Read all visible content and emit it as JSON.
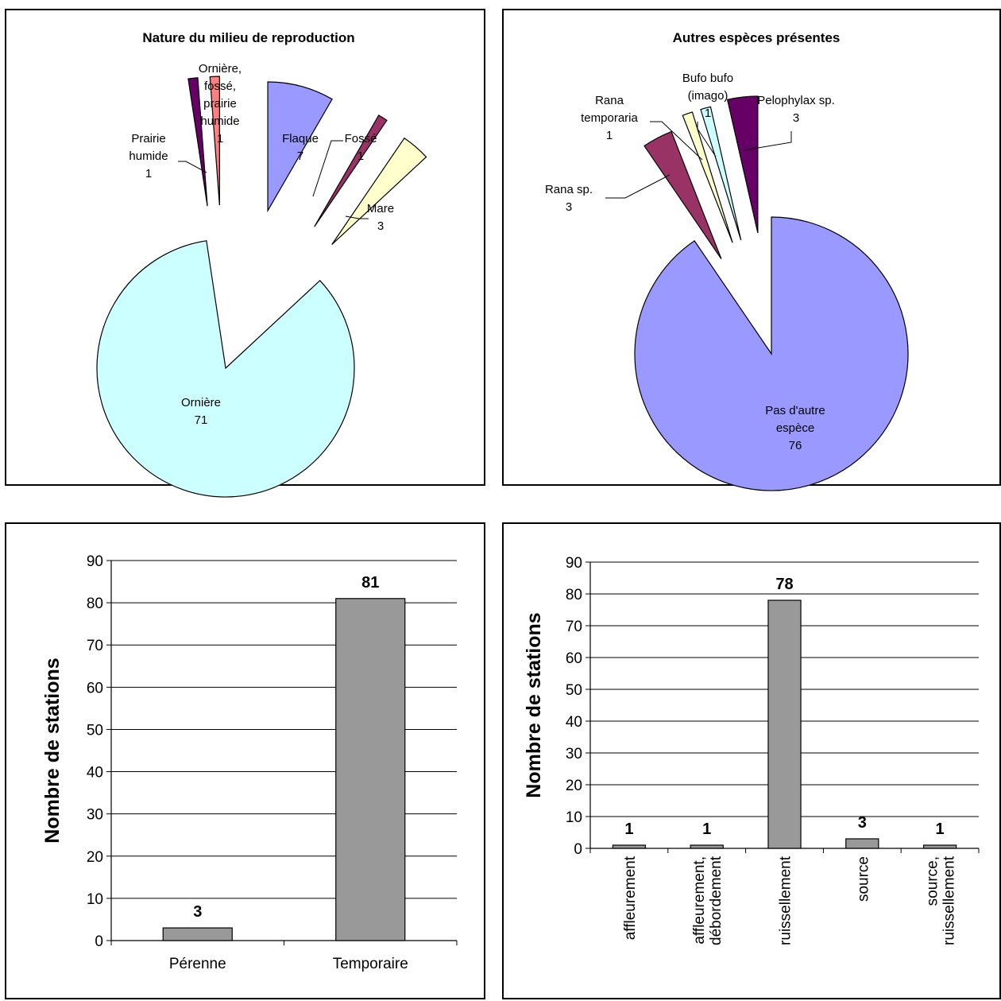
{
  "chart_data": [
    {
      "type": "pie",
      "title": "Nature du milieu de reproduction",
      "slices": [
        {
          "label": "Flaque",
          "value": 7,
          "color": "#9999ff"
        },
        {
          "label": "Fossé",
          "value": 1,
          "color": "#993366"
        },
        {
          "label": "Mare",
          "value": 3,
          "color": "#ffffcc"
        },
        {
          "label": "Ornière",
          "value": 71,
          "color": "#ccffff"
        },
        {
          "label": "Prairie humide",
          "value": 1,
          "color": "#660066"
        },
        {
          "label": "Ornière, fossé, prairie humide",
          "value": 1,
          "color": "#ff8080"
        }
      ]
    },
    {
      "type": "pie",
      "title": "Autres espèces présentes",
      "slices": [
        {
          "label": "Pas d'autre espèce",
          "value": 76,
          "color": "#9999ff"
        },
        {
          "label": "Rana sp.",
          "value": 3,
          "color": "#993366"
        },
        {
          "label": "Rana temporaria",
          "value": 1,
          "color": "#ffffcc"
        },
        {
          "label": "Bufo bufo (imago)",
          "value": 1,
          "color": "#ccffff"
        },
        {
          "label": "Pelophylax sp.",
          "value": 3,
          "color": "#660066"
        }
      ]
    },
    {
      "type": "bar",
      "ylabel": "Nombre de stations",
      "ylim": [
        0,
        90
      ],
      "yticks": [
        0,
        10,
        20,
        30,
        40,
        50,
        60,
        70,
        80,
        90
      ],
      "categories": [
        "Pérenne",
        "Temporaire"
      ],
      "values": [
        3,
        81
      ],
      "bar_color": "#999999",
      "grid": true
    },
    {
      "type": "bar",
      "ylabel": "Nombre de stations",
      "ylim": [
        0,
        90
      ],
      "yticks": [
        0,
        10,
        20,
        30,
        40,
        50,
        60,
        70,
        80,
        90
      ],
      "categories": [
        "affleurement",
        "affleurement, débordement",
        "ruissellement",
        "source",
        "source, ruissellement"
      ],
      "values": [
        1,
        1,
        78,
        3,
        1
      ],
      "bar_color": "#999999",
      "grid": true
    }
  ]
}
